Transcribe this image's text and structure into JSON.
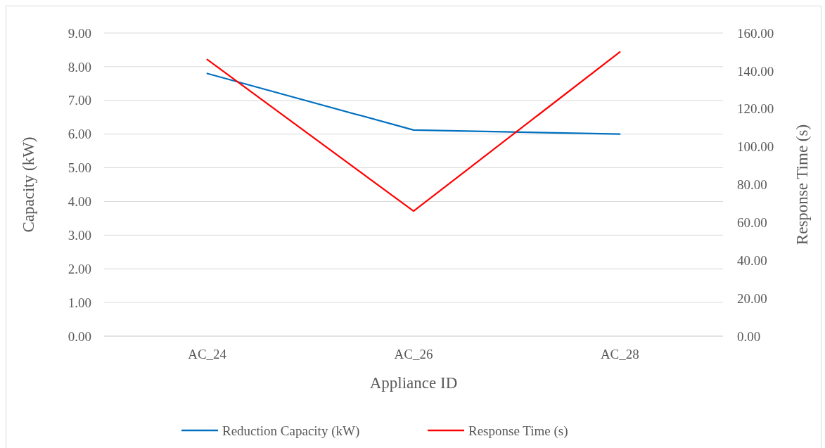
{
  "chart_data": {
    "type": "line",
    "xlabel": "Appliance ID",
    "ylabel": "Capacity (kW)",
    "y2label": "Response Time (s)",
    "categories": [
      "AC_24",
      "AC_26",
      "AC_28"
    ],
    "series": [
      {
        "name": "Reduction Capacity (kW)",
        "color": "#0070c0",
        "values": [
          7.8,
          6.12,
          6.0
        ]
      },
      {
        "name": "Response Time (s)",
        "color": "#ff0000",
        "values": [
          146,
          66,
          150
        ],
        "axis": "y2"
      }
    ],
    "ylim": [
      0,
      9
    ],
    "yticks": [
      {
        "value": 0,
        "label": "0.00"
      },
      {
        "value": 1,
        "label": "1.00"
      },
      {
        "value": 2,
        "label": "2.00"
      },
      {
        "value": 3,
        "label": "3.00"
      },
      {
        "value": 4,
        "label": "4.00"
      },
      {
        "value": 5,
        "label": "5.00"
      },
      {
        "value": 6,
        "label": "6.00"
      },
      {
        "value": 7,
        "label": "7.00"
      },
      {
        "value": 8,
        "label": "8.00"
      },
      {
        "value": 9,
        "label": "9.00"
      }
    ],
    "y2lim": [
      0,
      160
    ],
    "y2ticks": [
      {
        "value": 0,
        "label": "0.00"
      },
      {
        "value": 20,
        "label": "20.00"
      },
      {
        "value": 40,
        "label": "40.00"
      },
      {
        "value": 60,
        "label": "60.00"
      },
      {
        "value": 80,
        "label": "80.00"
      },
      {
        "value": 100,
        "label": "100.00"
      },
      {
        "value": 120,
        "label": "120.00"
      },
      {
        "value": 140,
        "label": "140.00"
      },
      {
        "value": 160,
        "label": "160.00"
      }
    ],
    "grid": "y",
    "legend": "bottom",
    "marker": "none",
    "line_style": "solid"
  }
}
